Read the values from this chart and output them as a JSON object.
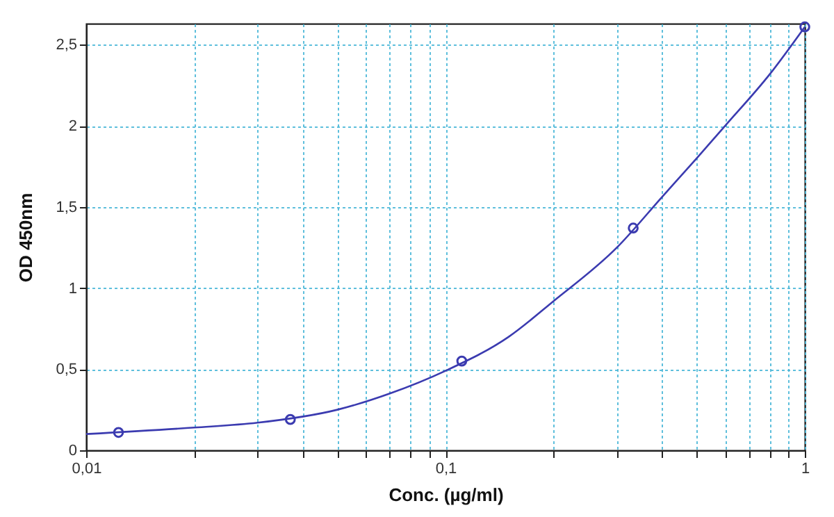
{
  "chart_data": {
    "type": "scatter",
    "xlabel": "Conc. (µg/ml)",
    "ylabel": "OD 450nm",
    "log": "x",
    "xlim": [
      0.01,
      1
    ],
    "ylim": [
      0,
      2.63
    ],
    "xticks": [
      {
        "value": 0.01,
        "label": "0,01"
      },
      {
        "value": 0.02,
        "label": null
      },
      {
        "value": 0.03,
        "label": null
      },
      {
        "value": 0.04,
        "label": null
      },
      {
        "value": 0.05,
        "label": null
      },
      {
        "value": 0.06,
        "label": null
      },
      {
        "value": 0.07,
        "label": null
      },
      {
        "value": 0.08,
        "label": null
      },
      {
        "value": 0.09,
        "label": null
      },
      {
        "value": 0.1,
        "label": "0,1"
      },
      {
        "value": 0.2,
        "label": null
      },
      {
        "value": 0.3,
        "label": null
      },
      {
        "value": 0.4,
        "label": null
      },
      {
        "value": 0.5,
        "label": null
      },
      {
        "value": 0.6,
        "label": null
      },
      {
        "value": 0.7,
        "label": null
      },
      {
        "value": 0.8,
        "label": null
      },
      {
        "value": 0.9,
        "label": null
      },
      1
    ],
    "yticks": [
      0,
      {
        "value": 0.5,
        "label": "0,5"
      },
      1,
      {
        "value": 1.5,
        "label": "1,5"
      },
      2,
      {
        "value": 2.5,
        "label": "2,5"
      }
    ],
    "grid": true,
    "series": [
      {
        "type": "line",
        "color": "#3b3bb0",
        "marker": "none",
        "x": [
          0.01,
          0.02,
          0.03,
          0.05,
          0.07,
          0.1,
          0.15,
          0.2,
          0.3,
          0.4,
          0.5,
          0.6,
          0.8,
          1
        ],
        "values": [
          0.1,
          0.14,
          0.17,
          0.25,
          0.35,
          0.49,
          0.7,
          0.92,
          1.25,
          1.56,
          1.8,
          2.0,
          2.32,
          2.61
        ]
      },
      {
        "type": "scatter",
        "color": "#3b3bb0",
        "marker": "circle",
        "x": [
          0.0123,
          0.037,
          0.111,
          0.333,
          1
        ],
        "values": [
          0.11,
          0.19,
          0.55,
          1.37,
          2.61
        ]
      }
    ]
  }
}
